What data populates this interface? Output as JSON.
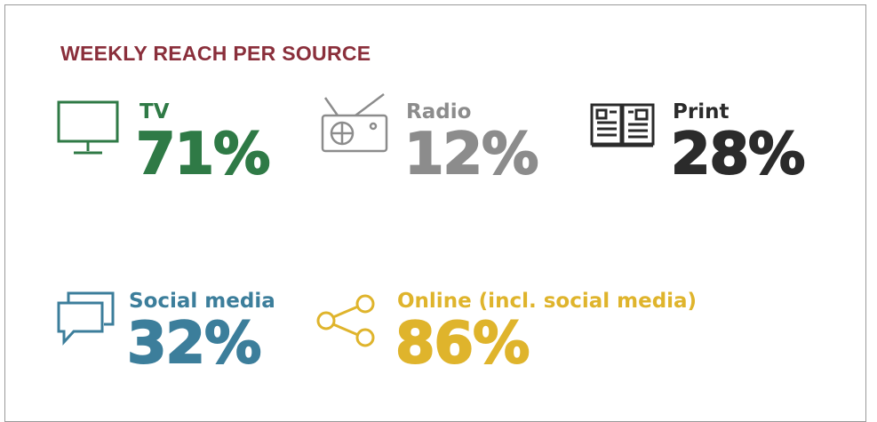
{
  "title": "WEEKLY REACH PER SOURCE",
  "items": [
    {
      "label": "TV",
      "value": "71%",
      "color": "#2f7a46"
    },
    {
      "label": "Radio",
      "value": "12%",
      "color": "#8c8c8c"
    },
    {
      "label": "Print",
      "value": "28%",
      "color": "#2b2b2b"
    },
    {
      "label": "Social media",
      "value": "32%",
      "color": "#3c7e9b"
    },
    {
      "label": "Online (incl. social media)",
      "value": "86%",
      "color": "#dfb42c"
    }
  ]
}
